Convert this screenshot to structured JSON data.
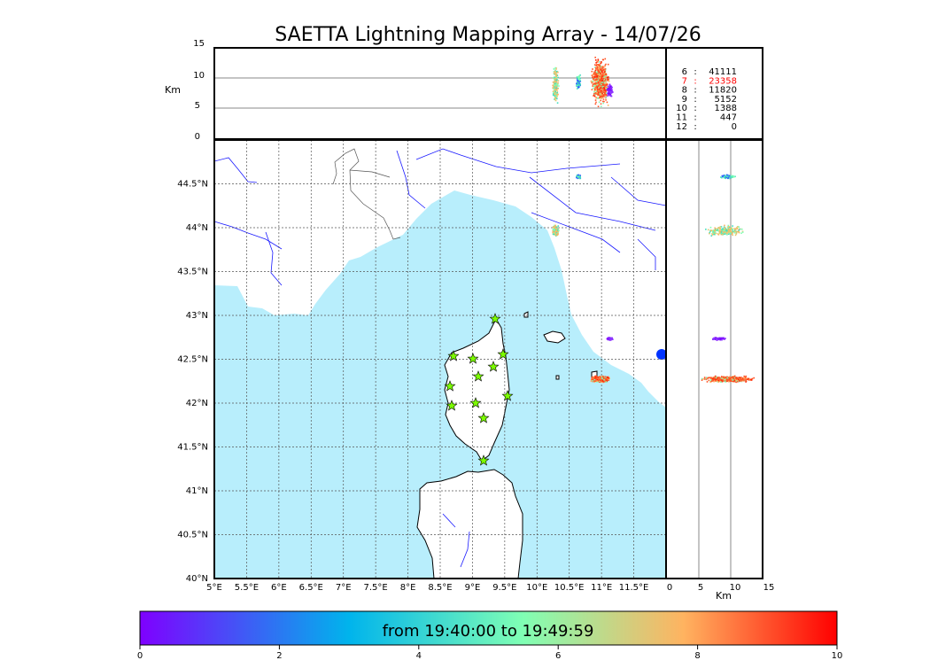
{
  "title": "SAETTA Lightning Mapping Array - 14/07/26",
  "alt_axis_label": "Km",
  "alt_ticks": [
    "15",
    "10",
    "5",
    "0"
  ],
  "km_axis_label": "Km",
  "km_ticks": [
    "0",
    "5",
    "10",
    "15"
  ],
  "lat_ticks": [
    "44.5°N",
    "44°N",
    "43.5°N",
    "43°N",
    "42.5°N",
    "42°N",
    "41.5°N",
    "41°N",
    "40.5°N",
    "40°N"
  ],
  "lon_ticks": [
    "5°E",
    "5.5°E",
    "6°E",
    "6.5°E",
    "7°E",
    "7.5°E",
    "8°E",
    "8.5°E",
    "9°E",
    "9.5°E",
    "10°E",
    "10.5°E",
    "11°E",
    "11.5°E"
  ],
  "station_counts": [
    {
      "stations": "6",
      "sep": ":",
      "count": "41111",
      "color": "#000000"
    },
    {
      "stations": "7",
      "sep": ":",
      "count": "23358",
      "color": "#ff0000"
    },
    {
      "stations": "8",
      "sep": ":",
      "count": "11820",
      "color": "#000000"
    },
    {
      "stations": "9",
      "sep": ":",
      "count": "5152",
      "color": "#000000"
    },
    {
      "stations": "10",
      "sep": ":",
      "count": "1388",
      "color": "#000000"
    },
    {
      "stations": "11",
      "sep": ":",
      "count": "447",
      "color": "#000000"
    },
    {
      "stations": "12",
      "sep": ":",
      "count": "0",
      "color": "#000000"
    }
  ],
  "colorbar": {
    "label": "from 19:40:00 to 19:49:59",
    "ticks": [
      "0",
      "2",
      "4",
      "6",
      "8",
      "10"
    ],
    "colors": [
      "#7f00ff",
      "#00b4ec",
      "#80ffb4",
      "#ffb360",
      "#ff0000"
    ]
  },
  "sea_color": "#b8eefc",
  "station_marker_color": "#7cfc00",
  "map_region": {
    "lon_range": [
      5,
      12
    ],
    "lat_range": [
      40,
      45
    ]
  },
  "flash_clusters": [
    {
      "lon": 10.28,
      "lat": 43.97,
      "alt_km": 9.0,
      "color": "#e0c870"
    },
    {
      "lon": 10.65,
      "lat": 44.6,
      "alt_km": 9.5,
      "color": "#40d8c0"
    },
    {
      "lon": 10.95,
      "lat": 42.28,
      "alt_km": 10.0,
      "color": "#ff5020"
    },
    {
      "lon": 11.12,
      "lat": 42.75,
      "alt_km": 8.0,
      "color": "#8020ff"
    }
  ]
}
